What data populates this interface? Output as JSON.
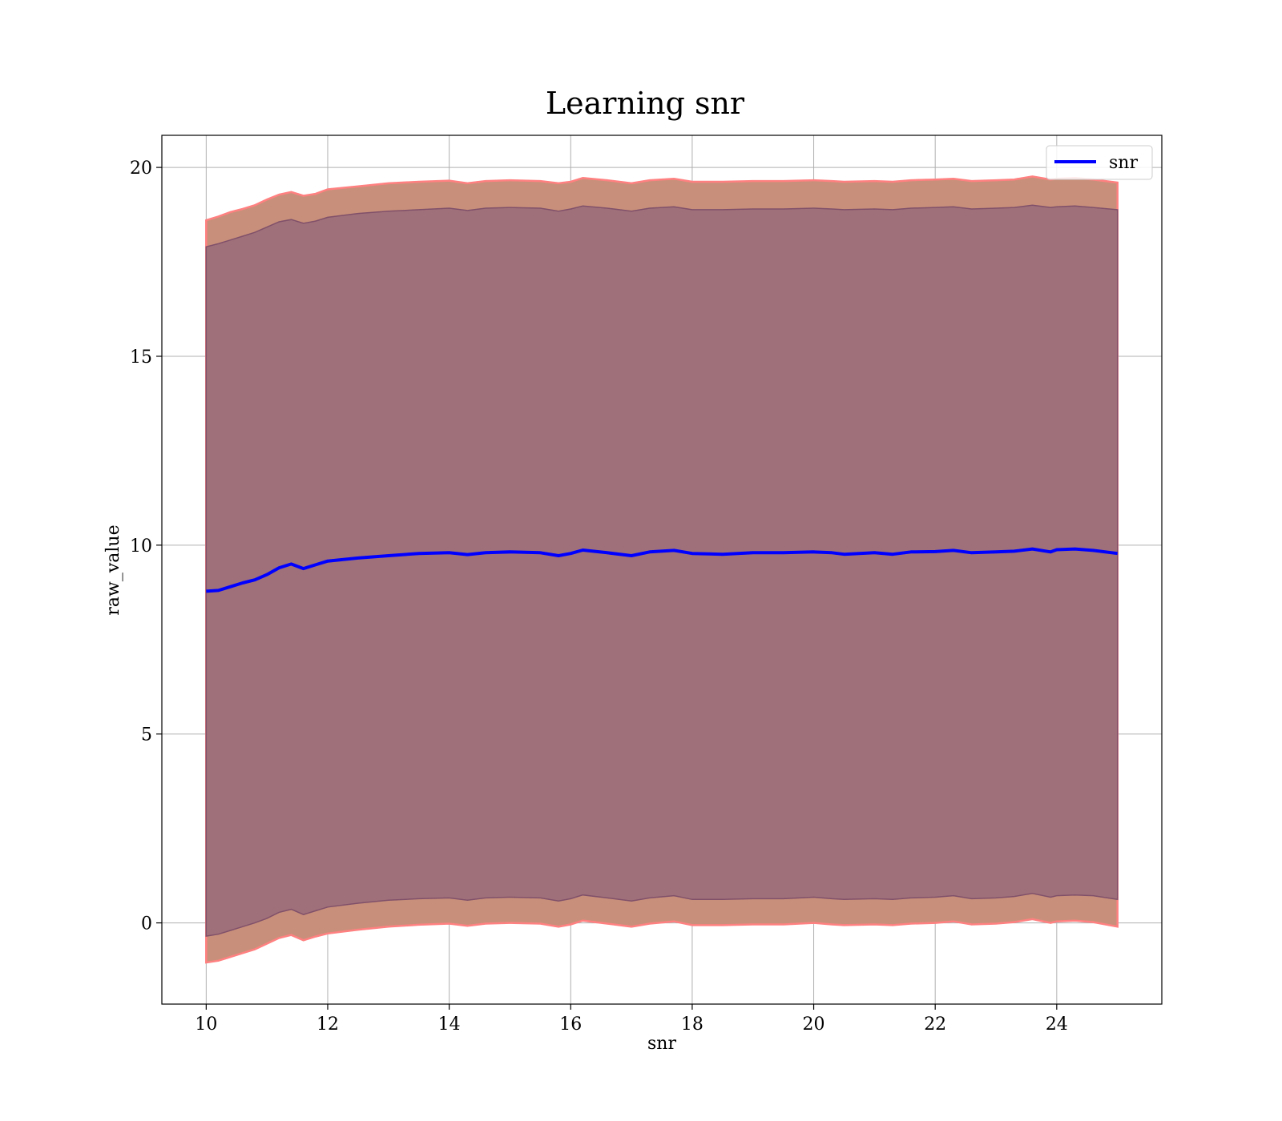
{
  "chart_data": {
    "type": "line",
    "title": "Learning snr",
    "xlabel": "snr",
    "ylabel": "raw_value",
    "xlim": [
      9.27,
      25.73
    ],
    "ylim": [
      -2.15,
      20.85
    ],
    "x_ticks": [
      10,
      12,
      14,
      16,
      18,
      20,
      22,
      24
    ],
    "y_ticks": [
      0,
      5,
      10,
      15,
      20
    ],
    "grid": true,
    "legend": {
      "placement": "top-right",
      "entries": [
        "snr"
      ]
    },
    "colors": {
      "line": "#0000ff",
      "outer_band_fill": "#c8907a",
      "outer_band_edge": "#ff8080",
      "inner_band_fill": "#a0707a",
      "inner_band_edge": "#80506a"
    },
    "series": [
      {
        "name": "snr",
        "x": [
          10.0,
          10.2,
          10.4,
          10.6,
          10.8,
          11.0,
          11.2,
          11.4,
          11.6,
          11.8,
          12.0,
          12.5,
          13.0,
          13.5,
          14.0,
          14.3,
          14.6,
          15.0,
          15.5,
          15.8,
          16.0,
          16.2,
          16.6,
          17.0,
          17.3,
          17.7,
          18.0,
          18.5,
          19.0,
          19.5,
          20.0,
          20.3,
          20.5,
          21.0,
          21.3,
          21.6,
          22.0,
          22.3,
          22.6,
          23.0,
          23.3,
          23.6,
          23.9,
          24.0,
          24.3,
          24.6,
          25.0
        ],
        "y": [
          8.78,
          8.8,
          8.9,
          9.0,
          9.08,
          9.22,
          9.4,
          9.5,
          9.38,
          9.48,
          9.58,
          9.66,
          9.72,
          9.78,
          9.8,
          9.75,
          9.8,
          9.82,
          9.8,
          9.72,
          9.78,
          9.87,
          9.8,
          9.72,
          9.82,
          9.86,
          9.78,
          9.76,
          9.8,
          9.8,
          9.82,
          9.8,
          9.76,
          9.8,
          9.76,
          9.82,
          9.83,
          9.86,
          9.8,
          9.82,
          9.84,
          9.9,
          9.82,
          9.88,
          9.9,
          9.86,
          9.78
        ]
      }
    ],
    "bands": {
      "outer_upper": [
        18.6,
        18.7,
        18.82,
        18.9,
        19.0,
        19.15,
        19.28,
        19.35,
        19.25,
        19.3,
        19.42,
        19.5,
        19.58,
        19.62,
        19.65,
        19.58,
        19.64,
        19.66,
        19.64,
        19.58,
        19.62,
        19.72,
        19.66,
        19.58,
        19.66,
        19.7,
        19.62,
        19.62,
        19.64,
        19.64,
        19.66,
        19.64,
        19.62,
        19.64,
        19.62,
        19.66,
        19.68,
        19.7,
        19.64,
        19.66,
        19.68,
        19.76,
        19.68,
        19.7,
        19.72,
        19.68,
        19.6
      ],
      "inner_upper": [
        17.9,
        17.98,
        18.08,
        18.18,
        18.28,
        18.42,
        18.56,
        18.62,
        18.52,
        18.58,
        18.68,
        18.78,
        18.84,
        18.88,
        18.92,
        18.86,
        18.92,
        18.94,
        18.92,
        18.84,
        18.9,
        18.98,
        18.92,
        18.84,
        18.92,
        18.96,
        18.88,
        18.88,
        18.9,
        18.9,
        18.92,
        18.9,
        18.88,
        18.9,
        18.88,
        18.92,
        18.94,
        18.96,
        18.9,
        18.92,
        18.94,
        19.0,
        18.94,
        18.96,
        18.98,
        18.94,
        18.88
      ],
      "inner_lower": [
        -0.35,
        -0.3,
        -0.2,
        -0.1,
        0.0,
        0.12,
        0.28,
        0.36,
        0.22,
        0.32,
        0.42,
        0.52,
        0.6,
        0.64,
        0.66,
        0.6,
        0.66,
        0.68,
        0.66,
        0.58,
        0.64,
        0.74,
        0.66,
        0.58,
        0.66,
        0.72,
        0.62,
        0.62,
        0.64,
        0.64,
        0.68,
        0.64,
        0.62,
        0.64,
        0.62,
        0.66,
        0.68,
        0.72,
        0.64,
        0.66,
        0.7,
        0.78,
        0.68,
        0.72,
        0.74,
        0.72,
        0.62
      ],
      "outer_lower": [
        -1.05,
        -1.0,
        -0.9,
        -0.8,
        -0.7,
        -0.55,
        -0.4,
        -0.32,
        -0.46,
        -0.36,
        -0.28,
        -0.18,
        -0.1,
        -0.05,
        -0.02,
        -0.08,
        -0.02,
        0.0,
        -0.02,
        -0.1,
        -0.04,
        0.06,
        -0.02,
        -0.1,
        -0.02,
        0.04,
        -0.06,
        -0.06,
        -0.04,
        -0.04,
        0.0,
        -0.04,
        -0.06,
        -0.04,
        -0.06,
        -0.02,
        0.0,
        0.04,
        -0.04,
        -0.02,
        0.02,
        0.1,
        0.0,
        0.04,
        0.06,
        0.02,
        -0.1
      ]
    }
  }
}
